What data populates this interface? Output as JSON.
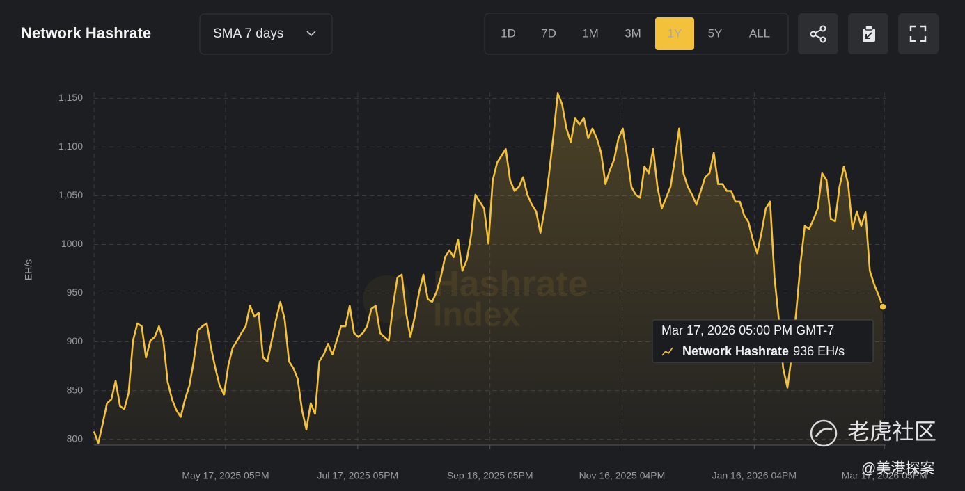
{
  "header": {
    "title": "Network Hashrate",
    "dropdown": "SMA 7 days",
    "ranges": [
      "1D",
      "7D",
      "1M",
      "3M",
      "1Y",
      "5Y",
      "ALL"
    ],
    "active_range": "1Y"
  },
  "watermarks": {
    "brand": [
      "Hashrate",
      "Index"
    ],
    "community": "老虎社区",
    "author": "@美港探案"
  },
  "chart_data": {
    "type": "line",
    "ylabel": "EH/s",
    "x": [
      "2025-03-18",
      "2025-03-20",
      "2025-03-22",
      "2025-03-24",
      "2025-03-26",
      "2025-03-28",
      "2025-03-30",
      "2025-04-01",
      "2025-04-03",
      "2025-04-05",
      "2025-04-07",
      "2025-04-09",
      "2025-04-11",
      "2025-04-13",
      "2025-04-15",
      "2025-04-17",
      "2025-04-19",
      "2025-04-21",
      "2025-04-23",
      "2025-04-25",
      "2025-04-27",
      "2025-04-29",
      "2025-05-01",
      "2025-05-03",
      "2025-05-05",
      "2025-05-07",
      "2025-05-09",
      "2025-05-11",
      "2025-05-13",
      "2025-05-15",
      "2025-05-17",
      "2025-05-19",
      "2025-05-21",
      "2025-05-23",
      "2025-05-25",
      "2025-05-27",
      "2025-05-29",
      "2025-05-31",
      "2025-06-02",
      "2025-06-04",
      "2025-06-06",
      "2025-06-08",
      "2025-06-10",
      "2025-06-12",
      "2025-06-14",
      "2025-06-16",
      "2025-06-18",
      "2025-06-20",
      "2025-06-22",
      "2025-06-24",
      "2025-06-26",
      "2025-06-28",
      "2025-06-30",
      "2025-07-02",
      "2025-07-04",
      "2025-07-06",
      "2025-07-08",
      "2025-07-10",
      "2025-07-12",
      "2025-07-14",
      "2025-07-16",
      "2025-07-18",
      "2025-07-20",
      "2025-07-22",
      "2025-07-24",
      "2025-07-26",
      "2025-07-28",
      "2025-07-30",
      "2025-08-01",
      "2025-08-03",
      "2025-08-05",
      "2025-08-07",
      "2025-08-09",
      "2025-08-11",
      "2025-08-13",
      "2025-08-15",
      "2025-08-17",
      "2025-08-19",
      "2025-08-21",
      "2025-08-23",
      "2025-08-25",
      "2025-08-27",
      "2025-08-29",
      "2025-08-31",
      "2025-09-02",
      "2025-09-04",
      "2025-09-06",
      "2025-09-08",
      "2025-09-10",
      "2025-09-12",
      "2025-09-14",
      "2025-09-16",
      "2025-09-18",
      "2025-09-20",
      "2025-09-22",
      "2025-09-24",
      "2025-09-26",
      "2025-09-28",
      "2025-09-30",
      "2025-10-02",
      "2025-10-04",
      "2025-10-06",
      "2025-10-08",
      "2025-10-10",
      "2025-10-12",
      "2025-10-14",
      "2025-10-16",
      "2025-10-18",
      "2025-10-20",
      "2025-10-22",
      "2025-10-24",
      "2025-10-26",
      "2025-10-28",
      "2025-10-30",
      "2025-11-01",
      "2025-11-03",
      "2025-11-05",
      "2025-11-07",
      "2025-11-09",
      "2025-11-11",
      "2025-11-13",
      "2025-11-15",
      "2025-11-17",
      "2025-11-19",
      "2025-11-21",
      "2025-11-23",
      "2025-11-25",
      "2025-11-27",
      "2025-11-29",
      "2025-12-01",
      "2025-12-03",
      "2025-12-05",
      "2025-12-07",
      "2025-12-09",
      "2025-12-11",
      "2025-12-13",
      "2025-12-15",
      "2025-12-17",
      "2025-12-19",
      "2025-12-21",
      "2025-12-23",
      "2025-12-25",
      "2025-12-27",
      "2025-12-29",
      "2025-12-31",
      "2026-01-02",
      "2026-01-04",
      "2026-01-06",
      "2026-01-08",
      "2026-01-10",
      "2026-01-12",
      "2026-01-14",
      "2026-01-16",
      "2026-01-18",
      "2026-01-20",
      "2026-01-22",
      "2026-01-24",
      "2026-01-26",
      "2026-01-28",
      "2026-01-30",
      "2026-02-01",
      "2026-02-03",
      "2026-02-05",
      "2026-02-07",
      "2026-02-09",
      "2026-02-11",
      "2026-02-13",
      "2026-02-15",
      "2026-02-17",
      "2026-02-19",
      "2026-02-21",
      "2026-02-23",
      "2026-02-25",
      "2026-02-27",
      "2026-03-01",
      "2026-03-03",
      "2026-03-05",
      "2026-03-07",
      "2026-03-09",
      "2026-03-11",
      "2026-03-13",
      "2026-03-15",
      "2026-03-17"
    ],
    "series": [
      {
        "name": "Network Hashrate",
        "color": "#f4c23a",
        "values": [
          808,
          796,
          816,
          837,
          841,
          860,
          834,
          831,
          848,
          901,
          919,
          916,
          884,
          901,
          905,
          916,
          901,
          859,
          841,
          830,
          823,
          841,
          855,
          880,
          912,
          916,
          919,
          894,
          873,
          855,
          846,
          876,
          894,
          901,
          909,
          916,
          937,
          926,
          930,
          884,
          880,
          901,
          923,
          941,
          923,
          880,
          873,
          862,
          830,
          810,
          837,
          826,
          880,
          887,
          898,
          887,
          901,
          916,
          916,
          937,
          909,
          905,
          909,
          916,
          934,
          937,
          909,
          905,
          901,
          937,
          966,
          969,
          930,
          905,
          926,
          951,
          969,
          944,
          941,
          951,
          966,
          987,
          994,
          987,
          1005,
          973,
          984,
          1009,
          1051,
          1044,
          1037,
          1001,
          1066,
          1084,
          1091,
          1098,
          1066,
          1055,
          1059,
          1069,
          1051,
          1041,
          1034,
          1012,
          1037,
          1073,
          1112,
          1155,
          1144,
          1119,
          1105,
          1130,
          1123,
          1130,
          1109,
          1119,
          1109,
          1094,
          1062,
          1076,
          1087,
          1109,
          1119,
          1091,
          1059,
          1051,
          1048,
          1080,
          1073,
          1098,
          1059,
          1037,
          1048,
          1059,
          1087,
          1119,
          1073,
          1059,
          1051,
          1041,
          1055,
          1069,
          1073,
          1094,
          1062,
          1062,
          1055,
          1055,
          1044,
          1044,
          1030,
          1023,
          1005,
          991,
          1012,
          1037,
          1044,
          966,
          923,
          873,
          853,
          887,
          930,
          980,
          1019,
          1016,
          1026,
          1037,
          1073,
          1066,
          1026,
          1024,
          1059,
          1080,
          1062,
          1016,
          1034,
          1019,
          1033,
          973,
          959,
          948,
          936
        ]
      }
    ],
    "xlim": [
      "2025-03-18",
      "2026-03-17"
    ],
    "xticks": [
      {
        "value": "2025-05-17T17:00",
        "label": "May 17, 2025 05PM"
      },
      {
        "value": "2025-07-17T17:00",
        "label": "Jul 17, 2025 05PM"
      },
      {
        "value": "2025-09-16T17:00",
        "label": "Sep 16, 2025 05PM"
      },
      {
        "value": "2025-11-16T16:00",
        "label": "Nov 16, 2025 04PM"
      },
      {
        "value": "2026-01-16T16:00",
        "label": "Jan 16, 2026 04PM"
      },
      {
        "value": "2026-03-17T17:00",
        "label": "Mar 17, 2026 05PM"
      }
    ],
    "ylim": [
      794,
      1156
    ],
    "yticks": [
      800,
      850,
      900,
      950,
      1000,
      {
        "value": 1050,
        "label": "1,050"
      },
      {
        "value": 1100,
        "label": "1,100"
      },
      {
        "value": 1150,
        "label": "1,150"
      }
    ],
    "grid": true,
    "tooltip": {
      "date": "Mar 17, 2026 05:00 PM GMT-7",
      "value": "936 EH/s"
    }
  }
}
